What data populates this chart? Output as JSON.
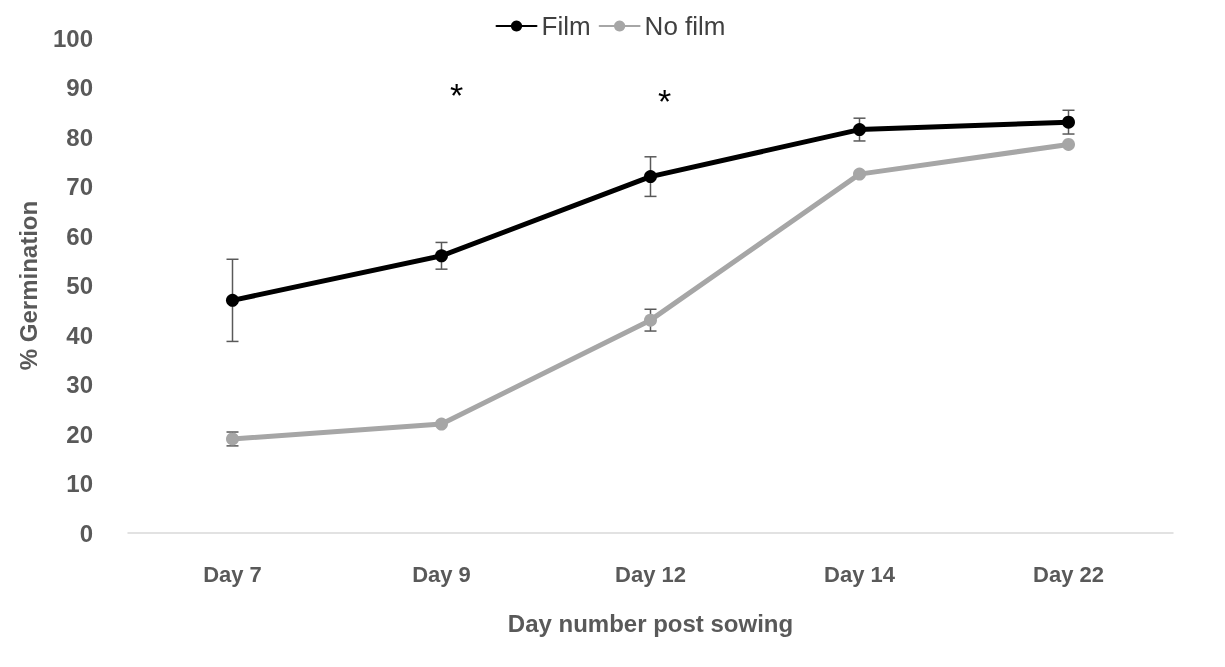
{
  "chart_data": {
    "type": "line",
    "xlabel": "Day number post sowing",
    "ylabel": "% Germination",
    "categories": [
      "Day 7",
      "Day 9",
      "Day 12",
      "Day 14",
      "Day 22"
    ],
    "series": [
      {
        "name": "Film",
        "color": "#000000",
        "values": [
          47,
          56,
          72,
          81.5,
          83
        ],
        "errors": [
          8.3,
          2.7,
          4,
          2.3,
          2.4
        ]
      },
      {
        "name": "No film",
        "color": "#a6a6a6",
        "values": [
          19,
          22,
          43,
          72.5,
          78.5
        ],
        "errors": [
          1.4,
          null,
          2.2,
          null,
          null
        ]
      }
    ],
    "ylim": [
      0,
      100
    ],
    "yticks": [
      0,
      10,
      20,
      30,
      40,
      50,
      60,
      70,
      80,
      90,
      100
    ],
    "grid": false,
    "legend": "top",
    "marker": "circle",
    "line_style": "solid",
    "annotations": [
      "*",
      "*"
    ]
  }
}
